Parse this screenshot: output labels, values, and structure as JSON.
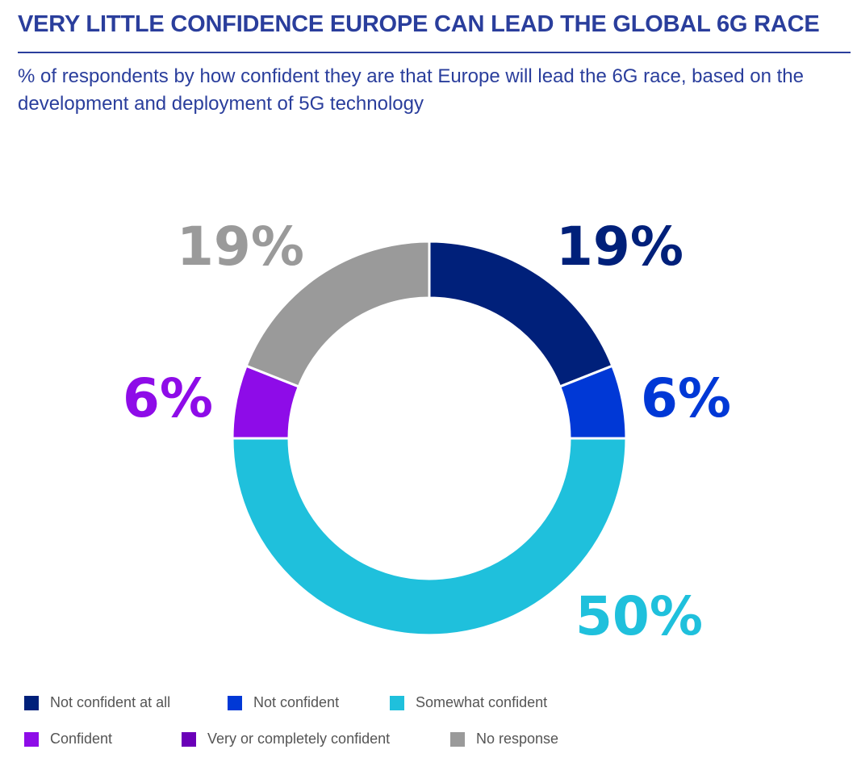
{
  "title": "VERY LITTLE CONFIDENCE EUROPE CAN LEAD THE GLOBAL 6G RACE",
  "subtitle": "% of respondents by how confident they are that Europe will lead the 6G race, based on the development and deployment of 5G technology",
  "chart_data": {
    "type": "pie",
    "variant": "donut",
    "title": "VERY LITTLE CONFIDENCE EUROPE CAN LEAD THE GLOBAL 6G RACE",
    "subtitle": "% of respondents by how confident they are that Europe will lead the 6G race, based on the development and deployment of 5G technology",
    "unit": "%",
    "legend_position": "bottom",
    "start_angle_deg": 0,
    "direction": "clockwise",
    "slices": [
      {
        "name": "Not confident at all",
        "value": 19,
        "label": "19%",
        "color": "#00207a",
        "label_color": "#00207a"
      },
      {
        "name": "Not confident",
        "value": 6,
        "label": "6%",
        "color": "#0038d6",
        "label_color": "#0038d6"
      },
      {
        "name": "Somewhat confident",
        "value": 50,
        "label": "50%",
        "color": "#1fc0dc",
        "label_color": "#1fc0dc"
      },
      {
        "name": "Confident",
        "value": 6,
        "label": "6%",
        "color": "#8e0ce8",
        "label_color": "#8e0ce8"
      },
      {
        "name": "Very or completely confident",
        "value": 0,
        "label": "",
        "color": "#6a00b8",
        "label_color": "#6a00b8"
      },
      {
        "name": "No response",
        "value": 19,
        "label": "19%",
        "color": "#9a9a9a",
        "label_color": "#9a9a9a"
      }
    ]
  }
}
